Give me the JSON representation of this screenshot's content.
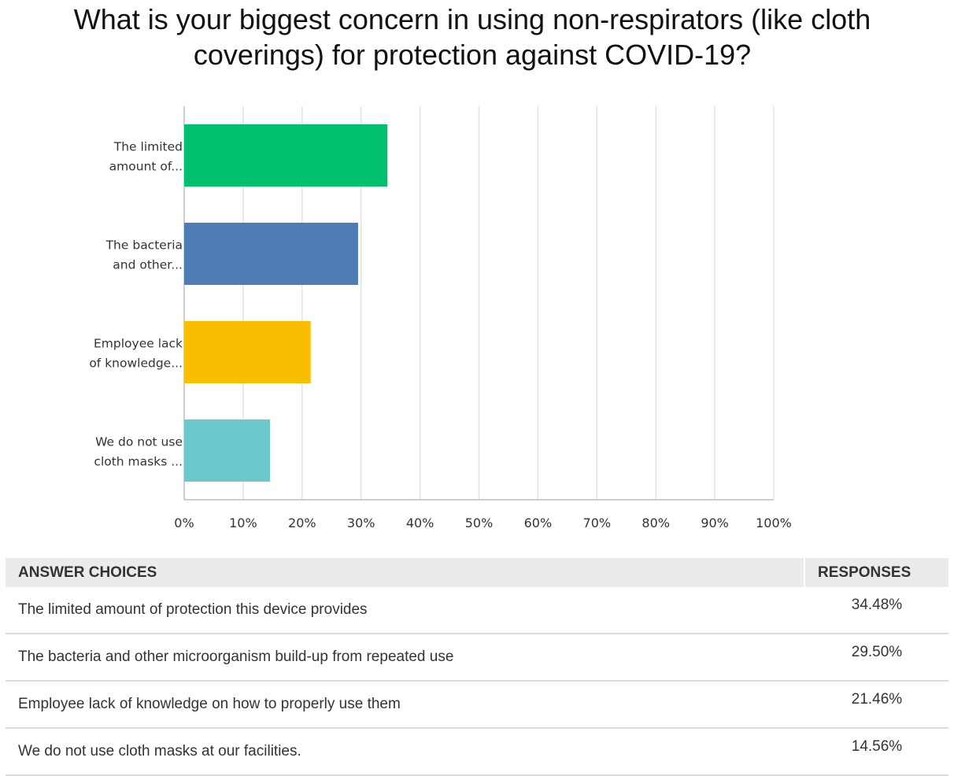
{
  "title_lines": [
    "What is your biggest concern in using non-respirators (like cloth",
    "coverings) for protection against COVID-19?"
  ],
  "chart_data": {
    "type": "bar",
    "orientation": "horizontal",
    "categories": [
      [
        "The limited",
        "amount of..."
      ],
      [
        "The bacteria",
        "and other..."
      ],
      [
        "Employee lack",
        "of knowledge..."
      ],
      [
        "We do not use",
        "cloth masks ..."
      ]
    ],
    "values": [
      34.48,
      29.5,
      21.46,
      14.56
    ],
    "colors": [
      "#00bf6f",
      "#507cb6",
      "#f9be00",
      "#6bc8cd"
    ],
    "xticks": [
      "0%",
      "10%",
      "20%",
      "30%",
      "40%",
      "50%",
      "60%",
      "70%",
      "80%",
      "90%",
      "100%"
    ],
    "xlim": [
      0,
      100
    ],
    "grid": true
  },
  "table": {
    "headers": [
      "ANSWER CHOICES",
      "RESPONSES"
    ],
    "rows": [
      {
        "choice": "The limited amount of protection this device provides",
        "response": "34.48%"
      },
      {
        "choice": "The bacteria and other microorganism build-up from repeated use",
        "response": "29.50%"
      },
      {
        "choice": "Employee lack of knowledge on how to properly use them",
        "response": "21.46%"
      },
      {
        "choice": "We do not use cloth masks at our facilities.",
        "response": "14.56%"
      }
    ]
  }
}
